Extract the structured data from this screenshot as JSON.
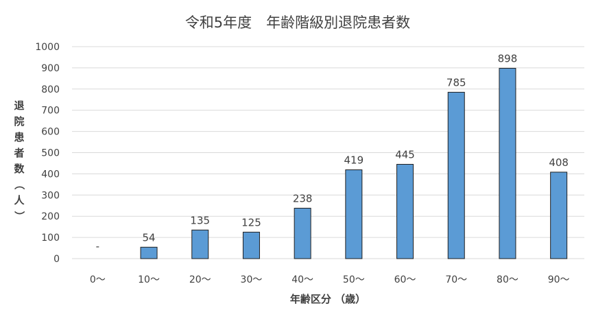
{
  "chart_data": {
    "type": "bar",
    "title": "令和5年度　年齢階級別退院患者数",
    "xlabel": "年齢区分 （歳）",
    "ylabel": "退院患者数（人）",
    "categories": [
      "0～",
      "10～",
      "20～",
      "30～",
      "40～",
      "50～",
      "60～",
      "70～",
      "80～",
      "90～"
    ],
    "values": [
      null,
      54,
      135,
      125,
      238,
      419,
      445,
      785,
      898,
      408
    ],
    "data_labels": [
      "-",
      "54",
      "135",
      "125",
      "238",
      "419",
      "445",
      "785",
      "898",
      "408"
    ],
    "ylim": [
      0,
      1000
    ],
    "yticks": [
      0,
      100,
      200,
      300,
      400,
      500,
      600,
      700,
      800,
      900,
      1000
    ],
    "grid": true,
    "legend": "none",
    "colors": {
      "bar": "#5b9bd5",
      "bar_border": "#1f1f1f",
      "grid": "#d9d9d9",
      "text": "#404040"
    }
  }
}
